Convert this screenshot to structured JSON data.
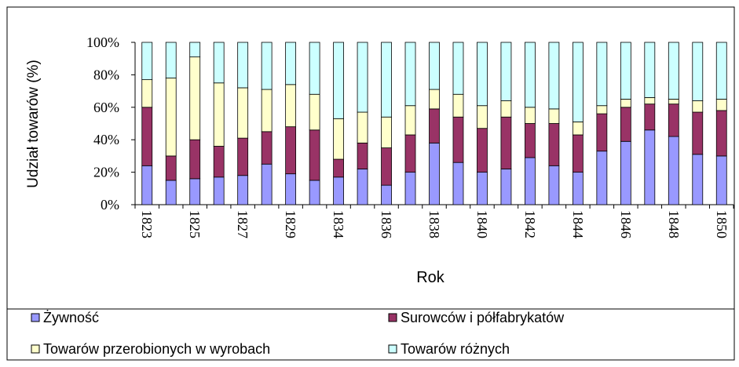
{
  "chart_data": {
    "type": "stacked_bar",
    "x_label": "Rok",
    "y_label": "Udział towarów (%)",
    "categories": [
      "1823",
      null,
      "1825",
      null,
      "1827",
      null,
      "1829",
      null,
      "1834",
      null,
      "1836",
      null,
      "1838",
      null,
      "1840",
      null,
      "1842",
      null,
      "1844",
      null,
      "1846",
      null,
      "1848",
      null,
      "1850"
    ],
    "series": [
      {
        "name": "Żywność",
        "color": "#9999ff",
        "values": [
          24,
          15,
          16,
          17,
          18,
          25,
          19,
          15,
          17,
          22,
          12,
          20,
          38,
          26,
          20,
          22,
          29,
          24,
          20,
          33,
          39,
          46,
          42,
          31,
          30
        ]
      },
      {
        "name": "Surowców i półfabrykatów",
        "color": "#993366",
        "values": [
          36,
          15,
          24,
          19,
          23,
          20,
          29,
          31,
          11,
          16,
          23,
          23,
          21,
          28,
          27,
          32,
          21,
          26,
          23,
          23,
          21,
          16,
          20,
          26,
          28
        ]
      },
      {
        "name": "Towarów przerobionych w wyrobach",
        "color": "#ffffcc",
        "values": [
          17,
          48,
          51,
          39,
          31,
          26,
          26,
          22,
          25,
          19,
          19,
          18,
          12,
          14,
          14,
          10,
          10,
          9,
          8,
          5,
          5,
          4,
          3,
          7,
          7
        ]
      },
      {
        "name": "Towarów różnych",
        "color": "#ccffff",
        "values": [
          23,
          22,
          9,
          25,
          28,
          29,
          26,
          32,
          47,
          43,
          46,
          39,
          29,
          32,
          39,
          36,
          40,
          41,
          49,
          39,
          35,
          34,
          35,
          36,
          35
        ]
      }
    ],
    "ylim": [
      0,
      100
    ],
    "yticks": [
      {
        "value": 0,
        "label": "0%"
      },
      {
        "value": 20,
        "label": "20%"
      },
      {
        "value": 40,
        "label": "40%"
      },
      {
        "value": 60,
        "label": "60%"
      },
      {
        "value": 80,
        "label": "80%"
      },
      {
        "value": 100,
        "label": "100%"
      }
    ]
  }
}
